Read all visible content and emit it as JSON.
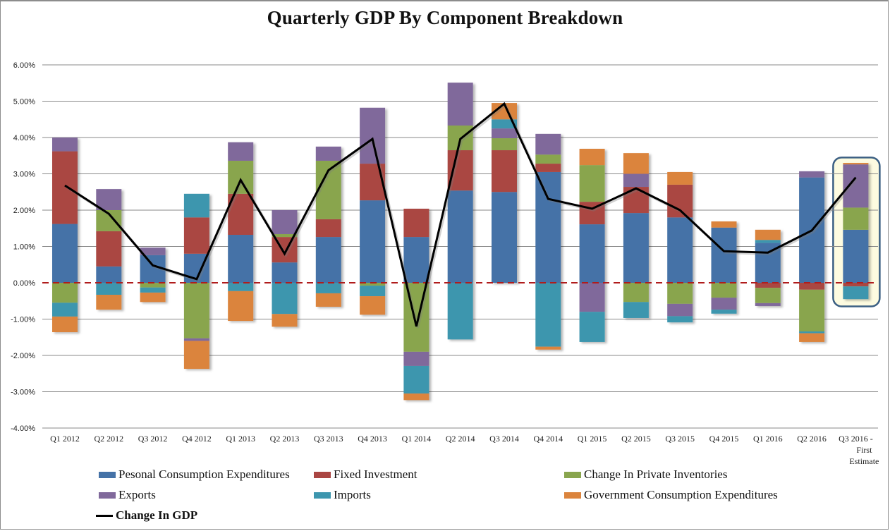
{
  "chart_data": {
    "type": "bar",
    "stacked": true,
    "title": "Quarterly GDP By Component Breakdown",
    "xlabel": "",
    "ylabel": "",
    "ylim": [
      -4.0,
      6.0
    ],
    "yticks": [
      "6.00%",
      "5.00%",
      "4.00%",
      "3.00%",
      "2.00%",
      "1.00%",
      "0.00%",
      "-1.00%",
      "-2.00%",
      "-3.00%",
      "-4.00%"
    ],
    "ytick_values": [
      6,
      5,
      4,
      3,
      2,
      1,
      0,
      -1,
      -2,
      -3,
      -4
    ],
    "grid": true,
    "zero_line": "dashed dark red",
    "legend_position": "bottom",
    "categories": [
      "Q1 2012",
      "Q2 2012",
      "Q3 2012",
      "Q4 2012",
      "Q1 2013",
      "Q2 2013",
      "Q3 2013",
      "Q4 2013",
      "Q1 2014",
      "Q2 2014",
      "Q3 2014",
      "Q4 2014",
      "Q1 2015",
      "Q2 2015",
      "Q3 2015",
      "Q4 2015",
      "Q1 2016",
      "Q2 2016",
      "Q3 2016 - First Estimate"
    ],
    "category_lines": [
      [
        "Q1 2012"
      ],
      [
        "Q2 2012"
      ],
      [
        "Q3 2012"
      ],
      [
        "Q4 2012"
      ],
      [
        "Q1 2013"
      ],
      [
        "Q2 2013"
      ],
      [
        "Q3 2013"
      ],
      [
        "Q4 2013"
      ],
      [
        "Q1 2014"
      ],
      [
        "Q2 2014"
      ],
      [
        "Q3 2014"
      ],
      [
        "Q4 2014"
      ],
      [
        "Q1 2015"
      ],
      [
        "Q2 2015"
      ],
      [
        "Q3 2015"
      ],
      [
        "Q4 2015"
      ],
      [
        "Q1 2016"
      ],
      [
        "Q2 2016"
      ],
      [
        "Q3 2016 -",
        "First",
        "Estimate"
      ]
    ],
    "series": [
      {
        "name": "Pesonal Consumption Expenditures",
        "key": "pce",
        "color": "#4572a7",
        "values": [
          1.62,
          0.45,
          0.76,
          0.8,
          1.32,
          0.56,
          1.26,
          2.27,
          1.26,
          2.54,
          2.5,
          3.05,
          1.61,
          1.92,
          1.8,
          1.52,
          1.1,
          2.9,
          1.46
        ]
      },
      {
        "name": "Fixed Investment",
        "key": "fixed",
        "color": "#aa4643",
        "values": [
          2.0,
          0.97,
          0.0,
          1.0,
          1.13,
          0.7,
          0.49,
          1.01,
          0.78,
          1.11,
          1.15,
          0.23,
          0.62,
          0.72,
          0.9,
          0.0,
          -0.14,
          -0.19,
          -0.1
        ]
      },
      {
        "name": "Change In Private Inventories",
        "key": "inventories",
        "color": "#89a54e",
        "values": [
          -0.55,
          0.58,
          -0.13,
          -1.53,
          0.91,
          0.08,
          1.61,
          -0.08,
          -1.9,
          0.68,
          0.33,
          0.25,
          1.01,
          -0.53,
          -0.58,
          -0.41,
          -0.42,
          -1.15,
          0.61
        ]
      },
      {
        "name": "Exports",
        "key": "exports",
        "color": "#80699b",
        "values": [
          0.38,
          0.58,
          0.21,
          -0.07,
          0.51,
          0.66,
          0.39,
          1.54,
          -0.39,
          1.18,
          0.27,
          0.57,
          -0.8,
          0.36,
          -0.34,
          -0.33,
          -0.08,
          0.17,
          1.19
        ]
      },
      {
        "name": "Imports",
        "key": "imports",
        "color": "#3d96ae",
        "values": [
          -0.38,
          -0.33,
          -0.14,
          0.65,
          -0.23,
          -0.86,
          -0.29,
          -0.29,
          -0.76,
          -1.56,
          0.25,
          -1.76,
          -0.83,
          -0.44,
          -0.17,
          -0.11,
          0.08,
          -0.05,
          -0.35
        ]
      },
      {
        "name": "Government Consumption Expenditures",
        "key": "government",
        "color": "#db843d",
        "values": [
          -0.43,
          -0.41,
          -0.26,
          -0.77,
          -0.82,
          -0.35,
          -0.37,
          -0.51,
          -0.18,
          0.0,
          0.45,
          -0.08,
          0.45,
          0.57,
          0.35,
          0.17,
          0.28,
          -0.24,
          0.04
        ]
      }
    ],
    "line_series": {
      "name": "Change In GDP",
      "color": "#000000",
      "values": [
        2.68,
        1.9,
        0.48,
        0.1,
        2.83,
        0.8,
        3.1,
        3.96,
        -1.2,
        3.96,
        4.93,
        2.31,
        2.04,
        2.6,
        2.0,
        0.87,
        0.83,
        1.44,
        2.9
      ]
    },
    "highlight": {
      "category": "Q3 2016 - First Estimate",
      "border_color": "#3b5f83",
      "fill_color": "#fdfbe0"
    }
  },
  "legend": {
    "items": [
      {
        "label": "Pesonal Consumption Expenditures",
        "color": "#4572a7"
      },
      {
        "label": "Fixed Investment",
        "color": "#aa4643"
      },
      {
        "label": "Change In Private Inventories",
        "color": "#89a54e"
      },
      {
        "label": "Exports",
        "color": "#80699b"
      },
      {
        "label": "Imports",
        "color": "#3d96ae"
      },
      {
        "label": "Government Consumption Expenditures",
        "color": "#db843d"
      }
    ],
    "line_item": {
      "label": "Change In GDP",
      "color": "#000000"
    }
  }
}
